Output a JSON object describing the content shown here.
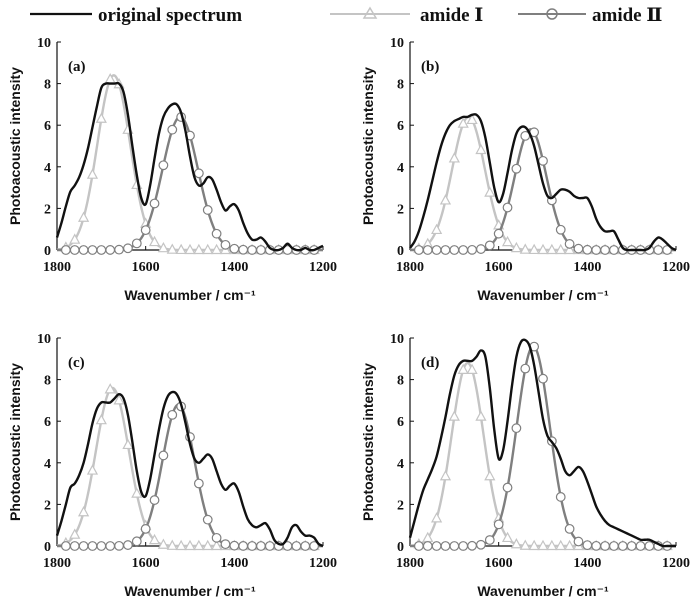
{
  "legend": {
    "original": "original spectrum",
    "amide1": "amide Ⅰ",
    "amide2": "amide Ⅱ"
  },
  "colors": {
    "original": "#111111",
    "amide1": "#c4c4c4",
    "amide2": "#7f7f7f"
  },
  "chart_data": [
    {
      "type": "line",
      "panel_label": "(a)",
      "xlabel": "Wavenumber / cm⁻¹",
      "ylabel": "Photoacoustic intensity",
      "xlim": [
        1800,
        1200
      ],
      "ylim": [
        0,
        10
      ],
      "xticks": [
        1800,
        1600,
        1400,
        1200
      ],
      "yticks": [
        0,
        2,
        4,
        6,
        8,
        10
      ],
      "series": [
        {
          "name": "original spectrum",
          "x": [
            1800,
            1790,
            1780,
            1770,
            1760,
            1750,
            1740,
            1730,
            1720,
            1710,
            1700,
            1690,
            1680,
            1670,
            1660,
            1650,
            1640,
            1630,
            1620,
            1610,
            1600,
            1590,
            1580,
            1570,
            1560,
            1550,
            1540,
            1530,
            1520,
            1510,
            1500,
            1490,
            1480,
            1470,
            1460,
            1450,
            1440,
            1430,
            1420,
            1410,
            1400,
            1390,
            1380,
            1370,
            1360,
            1350,
            1340,
            1330,
            1320,
            1310,
            1300,
            1290,
            1280,
            1270,
            1260,
            1250,
            1240,
            1230,
            1220,
            1210,
            1200
          ],
          "y": [
            0.6,
            1.3,
            2.1,
            2.8,
            3.1,
            3.5,
            4.1,
            4.9,
            5.9,
            6.9,
            7.8,
            8.0,
            8.0,
            8.0,
            8.0,
            7.6,
            6.5,
            5.0,
            3.6,
            2.5,
            2.2,
            3.1,
            4.4,
            5.6,
            6.4,
            6.8,
            7.0,
            7.0,
            6.6,
            5.7,
            4.5,
            3.5,
            3.1,
            3.2,
            3.5,
            3.4,
            2.9,
            2.3,
            1.9,
            2.1,
            2.2,
            1.9,
            1.3,
            0.8,
            0.5,
            0.5,
            0.6,
            0.4,
            0.1,
            0.0,
            0.0,
            0.1,
            0.3,
            0.1,
            0.0,
            0.0,
            0.1,
            0.0,
            0.0,
            0.1,
            0.2
          ]
        },
        {
          "name": "amide Ⅰ",
          "peak": {
            "center": 1672,
            "amplitude": 8.4,
            "width": 37
          }
        },
        {
          "name": "amide Ⅱ",
          "peak": {
            "center": 1522,
            "amplitude": 6.4,
            "width": 40
          }
        }
      ]
    },
    {
      "type": "line",
      "panel_label": "(b)",
      "xlabel": "Wavenumber / cm⁻¹",
      "ylabel": "Photoacoustic intensity",
      "xlim": [
        1800,
        1200
      ],
      "ylim": [
        0,
        10
      ],
      "xticks": [
        1800,
        1600,
        1400,
        1200
      ],
      "yticks": [
        0,
        2,
        4,
        6,
        8,
        10
      ],
      "series": [
        {
          "name": "original spectrum",
          "x": [
            1800,
            1790,
            1780,
            1770,
            1760,
            1750,
            1740,
            1730,
            1720,
            1710,
            1700,
            1690,
            1680,
            1670,
            1660,
            1650,
            1640,
            1630,
            1620,
            1610,
            1600,
            1590,
            1580,
            1570,
            1560,
            1550,
            1540,
            1530,
            1520,
            1510,
            1500,
            1490,
            1480,
            1470,
            1460,
            1450,
            1440,
            1430,
            1420,
            1410,
            1400,
            1390,
            1380,
            1370,
            1360,
            1350,
            1340,
            1330,
            1320,
            1310,
            1300,
            1290,
            1280,
            1270,
            1260,
            1250,
            1240,
            1230,
            1220,
            1210,
            1200
          ],
          "y": [
            0.1,
            0.4,
            0.9,
            1.6,
            2.4,
            3.3,
            4.2,
            5.0,
            5.6,
            6.0,
            6.2,
            6.3,
            6.4,
            6.4,
            6.5,
            6.5,
            6.2,
            5.4,
            4.2,
            3.0,
            2.3,
            2.7,
            3.7,
            4.8,
            5.6,
            5.9,
            5.9,
            5.6,
            5.0,
            4.1,
            3.2,
            2.6,
            2.5,
            2.7,
            2.9,
            2.9,
            2.8,
            2.6,
            2.5,
            2.5,
            2.5,
            2.1,
            1.5,
            1.1,
            0.9,
            0.9,
            0.9,
            0.5,
            0.1,
            0.0,
            0.0,
            0.0,
            0.0,
            0.0,
            0.1,
            0.4,
            0.6,
            0.5,
            0.3,
            0.1,
            0.0
          ]
        },
        {
          "name": "amide Ⅰ",
          "peak": {
            "center": 1668,
            "amplitude": 6.4,
            "width": 37
          }
        },
        {
          "name": "amide Ⅱ",
          "peak": {
            "center": 1528,
            "amplitude": 5.8,
            "width": 36
          }
        }
      ]
    },
    {
      "type": "line",
      "panel_label": "(c)",
      "xlabel": "Wavenumber / cm⁻¹",
      "ylabel": "Photoacoustic intensity",
      "xlim": [
        1800,
        1200
      ],
      "ylim": [
        0,
        10
      ],
      "xticks": [
        1800,
        1600,
        1400,
        1200
      ],
      "yticks": [
        0,
        2,
        4,
        6,
        8,
        10
      ],
      "series": [
        {
          "name": "original spectrum",
          "x": [
            1800,
            1790,
            1780,
            1770,
            1760,
            1750,
            1740,
            1730,
            1720,
            1710,
            1700,
            1690,
            1680,
            1670,
            1660,
            1650,
            1640,
            1630,
            1620,
            1610,
            1600,
            1590,
            1580,
            1570,
            1560,
            1550,
            1540,
            1530,
            1520,
            1510,
            1500,
            1490,
            1480,
            1470,
            1460,
            1450,
            1440,
            1430,
            1420,
            1410,
            1400,
            1390,
            1380,
            1370,
            1360,
            1350,
            1340,
            1330,
            1320,
            1310,
            1300,
            1290,
            1280,
            1270,
            1260,
            1250,
            1240,
            1230,
            1220,
            1210,
            1200
          ],
          "y": [
            0.5,
            1.2,
            2.0,
            2.8,
            3.0,
            3.4,
            4.0,
            4.9,
            5.9,
            6.6,
            6.9,
            6.9,
            6.9,
            7.1,
            7.3,
            7.1,
            6.3,
            5.0,
            3.6,
            2.6,
            2.4,
            3.2,
            4.4,
            5.6,
            6.6,
            7.2,
            7.4,
            7.3,
            6.8,
            5.9,
            4.9,
            4.2,
            4.0,
            4.2,
            4.4,
            4.2,
            3.6,
            3.0,
            2.7,
            2.9,
            3.0,
            2.6,
            1.9,
            1.3,
            1.0,
            0.9,
            1.0,
            1.1,
            0.8,
            0.3,
            0.1,
            0.1,
            0.4,
            0.9,
            1.0,
            0.7,
            0.5,
            0.5,
            0.4,
            0.1,
            0.0
          ]
        },
        {
          "name": "amide Ⅰ",
          "peak": {
            "center": 1675,
            "amplitude": 7.6,
            "width": 37
          }
        },
        {
          "name": "amide Ⅱ",
          "peak": {
            "center": 1526,
            "amplitude": 6.8,
            "width": 36
          }
        }
      ]
    },
    {
      "type": "line",
      "panel_label": "(d)",
      "xlabel": "Wavenumber / cm⁻¹",
      "ylabel": "Photoacoustic intensity",
      "xlim": [
        1800,
        1200
      ],
      "ylim": [
        0,
        10
      ],
      "xticks": [
        1800,
        1600,
        1400,
        1200
      ],
      "yticks": [
        0,
        2,
        4,
        6,
        8,
        10
      ],
      "series": [
        {
          "name": "original spectrum",
          "x": [
            1800,
            1790,
            1780,
            1770,
            1760,
            1750,
            1740,
            1730,
            1720,
            1710,
            1700,
            1690,
            1680,
            1670,
            1660,
            1650,
            1640,
            1630,
            1620,
            1610,
            1600,
            1590,
            1580,
            1570,
            1560,
            1550,
            1540,
            1530,
            1520,
            1510,
            1500,
            1490,
            1480,
            1470,
            1460,
            1450,
            1440,
            1430,
            1420,
            1410,
            1400,
            1390,
            1380,
            1370,
            1360,
            1350,
            1340,
            1330,
            1320,
            1310,
            1300,
            1290,
            1280,
            1270,
            1260,
            1250,
            1240,
            1230,
            1220,
            1210,
            1200
          ],
          "y": [
            0.4,
            1.2,
            2.0,
            2.7,
            3.2,
            3.7,
            4.3,
            5.2,
            6.2,
            7.3,
            8.2,
            8.7,
            8.9,
            8.9,
            8.9,
            9.1,
            9.4,
            9.1,
            7.6,
            5.6,
            4.2,
            4.6,
            6.0,
            7.7,
            9.1,
            9.8,
            9.9,
            9.6,
            8.7,
            7.4,
            6.1,
            5.3,
            5.0,
            4.7,
            4.2,
            3.6,
            3.4,
            3.6,
            3.8,
            3.6,
            3.1,
            2.5,
            1.9,
            1.5,
            1.2,
            1.0,
            0.9,
            0.8,
            0.7,
            0.6,
            0.5,
            0.4,
            0.3,
            0.3,
            0.3,
            0.2,
            0.1,
            0.0,
            0.0,
            0.0,
            0.0
          ]
        },
        {
          "name": "amide Ⅰ",
          "peak": {
            "center": 1670,
            "amplitude": 8.8,
            "width": 36
          }
        },
        {
          "name": "amide Ⅱ",
          "peak": {
            "center": 1522,
            "amplitude": 9.6,
            "width": 37
          }
        }
      ]
    }
  ]
}
